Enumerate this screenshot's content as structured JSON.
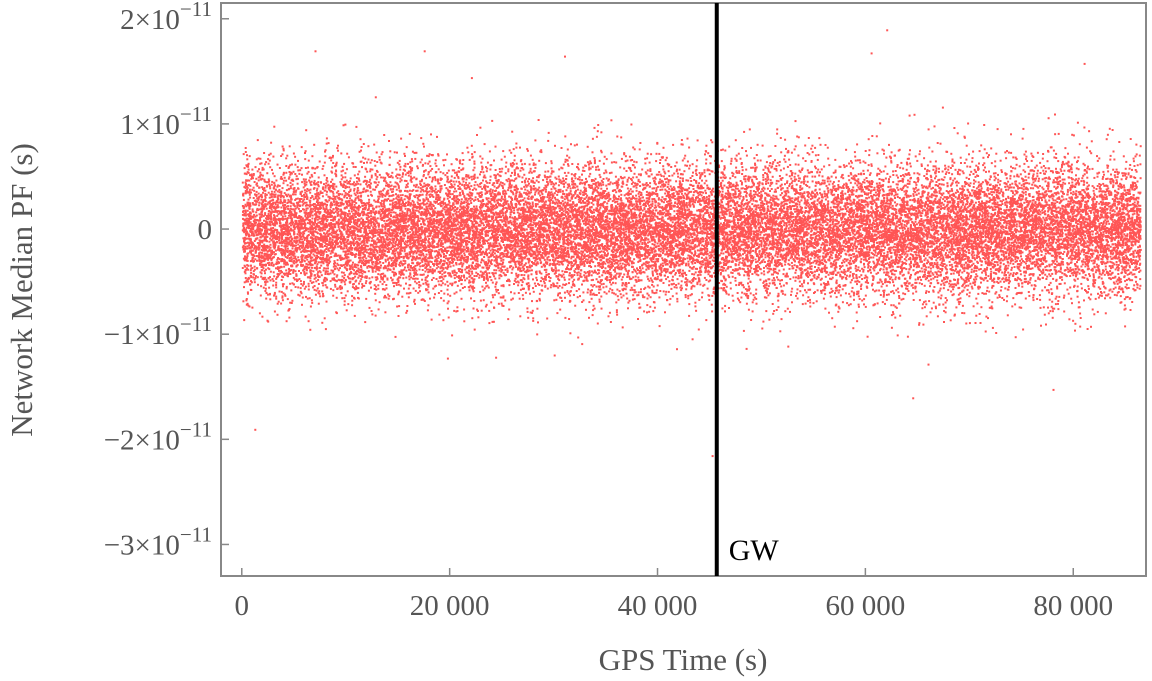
{
  "chart_data": {
    "type": "scatter",
    "title": "",
    "xlabel": "GPS Time (s)",
    "ylabel": "Network Median PF (s)",
    "xlim": [
      -2000,
      87000
    ],
    "ylim": [
      -3.3e-11,
      2.15e-11
    ],
    "x_ticks": [
      {
        "value": 0,
        "label": "0"
      },
      {
        "value": 20000,
        "label": "20 000"
      },
      {
        "value": 40000,
        "label": "40 000"
      },
      {
        "value": 60000,
        "label": "60 000"
      },
      {
        "value": 80000,
        "label": "80 000"
      }
    ],
    "y_ticks": [
      {
        "value": 2e-11,
        "mantissa": "2",
        "prefix": "",
        "exponent": "−11"
      },
      {
        "value": 1e-11,
        "mantissa": "1",
        "prefix": "",
        "exponent": "−11"
      },
      {
        "value": 0,
        "mantissa": "0",
        "prefix": "",
        "exponent": ""
      },
      {
        "value": -1e-11,
        "mantissa": "1",
        "prefix": "−",
        "exponent": "−11"
      },
      {
        "value": -2e-11,
        "mantissa": "2",
        "prefix": "−",
        "exponent": "−11"
      },
      {
        "value": -3e-11,
        "mantissa": "3",
        "prefix": "−",
        "exponent": "−11"
      }
    ],
    "scatter_points_summary": {
      "x_range": [
        0,
        86400
      ],
      "approximate_point_count": 60000,
      "median_y": 0,
      "typical_spread_y": 3.2e-11,
      "sample_count_shown": "dense band from about -7e-12 to 7e-12 with sparse outliers to about ±1.8e-11"
    },
    "outliers": [
      {
        "x": 1200,
        "y": -1.9e-11
      },
      {
        "x": 7000,
        "y": 1.7e-11
      },
      {
        "x": 17500,
        "y": 1.7e-11
      },
      {
        "x": 31000,
        "y": 1.65e-11
      },
      {
        "x": 45200,
        "y": -2.15e-11
      },
      {
        "x": 62000,
        "y": 1.9e-11
      },
      {
        "x": 60500,
        "y": 1.68e-11
      },
      {
        "x": 64500,
        "y": -1.6e-11
      },
      {
        "x": 81000,
        "y": 1.58e-11
      },
      {
        "x": 78000,
        "y": -1.52e-11
      }
    ],
    "vertical_line": {
      "x": 45700,
      "label": "GW",
      "color": "#000000"
    },
    "series": [
      {
        "color": "#ff5555"
      }
    ],
    "grid": false,
    "legend": "none"
  }
}
